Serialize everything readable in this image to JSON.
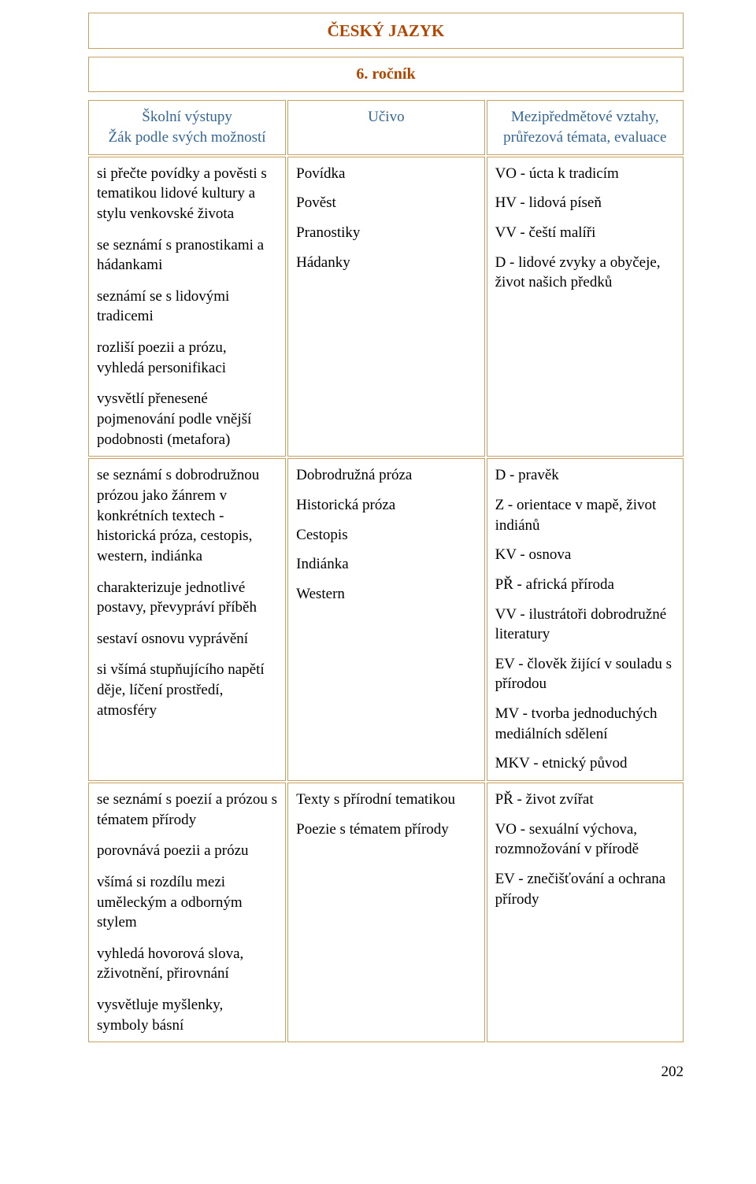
{
  "colors": {
    "accent_text": "#b24600",
    "header_text": "#336699",
    "border": "#c8a062",
    "body_text": "#000000",
    "background": "#ffffff"
  },
  "typography": {
    "base_family": "Times New Roman",
    "base_size_pt": 14,
    "title_size_pt": 16,
    "title_weight": "bold"
  },
  "page_number": "202",
  "title": "ČESKÝ JAZYK",
  "grade": "6. ročník",
  "header": {
    "col1_line1": "Školní výstupy",
    "col1_line2": "Žák podle svých možností",
    "col2": "Učivo",
    "col3_line1": "Mezipředmětové vztahy,",
    "col3_line2": "průřezová témata, evaluace"
  },
  "rows": [
    {
      "c1": [
        "si přečte povídky a pověsti s tematikou lidové kultury a stylu venkovské života",
        "se seznámí s pranostikami a hádankami",
        "seznámí se s lidovými tradicemi",
        "rozliší poezii a prózu, vyhledá personifikaci",
        "vysvětlí přenesené pojmenování podle vnější podobnosti (metafora)"
      ],
      "c2": [
        "Povídka",
        "Pověst",
        "Pranostiky",
        "Hádanky"
      ],
      "c3": [
        "VO - úcta k tradicím",
        "HV - lidová píseň",
        "VV - čeští malíři",
        "D - lidové zvyky a obyčeje, život našich předků"
      ]
    },
    {
      "c1": [
        "se seznámí  s dobrodružnou prózou jako žánrem v konkrétních textech - historická próza, cestopis, western, indiánka",
        "charakterizuje jednotlivé postavy, převypráví příběh",
        "sestaví osnovu vyprávění",
        "si všímá stupňujícího napětí děje, líčení prostředí, atmosféry"
      ],
      "c2": [
        "Dobrodružná próza",
        "Historická próza",
        "Cestopis",
        "Indiánka",
        "Western"
      ],
      "c3": [
        "D - pravěk",
        "Z - orientace v mapě, život indiánů",
        "KV  - osnova",
        "PŘ - africká příroda",
        "VV - ilustrátoři dobrodružné literatury",
        "EV - člověk žijící v souladu s přírodou",
        "MV - tvorba jednoduchých mediálních sdělení",
        "MKV - etnický původ"
      ]
    },
    {
      "c1": [
        "se seznámí s poezií a prózou s tématem přírody",
        "porovnává poezii a prózu",
        "všímá si rozdílu mezi uměleckým a odborným stylem",
        "vyhledá hovorová slova, zživotnění, přirovnání",
        "vysvětluje myšlenky, symboly básní"
      ],
      "c2": [
        "Texty s přírodní tematikou",
        "Poezie s tématem přírody"
      ],
      "c3": [
        "PŘ - život zvířat",
        "VO - sexuální výchova, rozmnožování v přírodě",
        "EV - znečišťování a ochrana přírody"
      ]
    }
  ]
}
